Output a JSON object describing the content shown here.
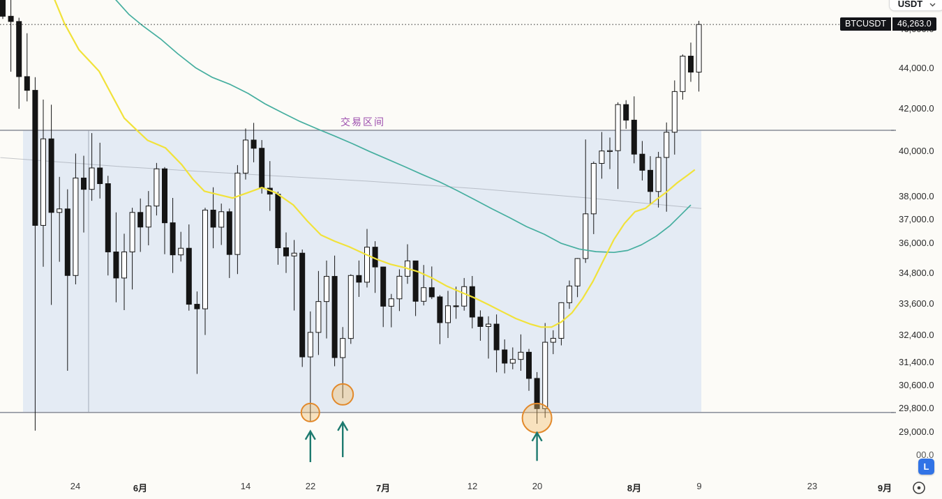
{
  "ui": {
    "currency_selector": {
      "label": "USDT"
    },
    "symbol_badge": {
      "symbol": "BTCUSDT",
      "price": "46,263.0"
    },
    "range_label": "交易区间",
    "log_scale_button": "L",
    "partial_axis_label": "00.0"
  },
  "colors": {
    "background": "#fcfbf7",
    "candle_down": "#151515",
    "candle_up_fill": "#ffffff",
    "range_box_fill": "rgba(196,212,240,0.42)",
    "range_line": "#90949e",
    "ma_yellow": "#f1e23a",
    "ma_teal": "#45ae9f",
    "ma_faint_gray": "rgba(140,145,155,0.5)",
    "highlight_circle_stroke": "#e2892b",
    "highlight_circle_fill": "rgba(243,186,98,0.38)",
    "arrow": "#1d7a6f",
    "range_label_color": "#9d4fae",
    "badge_bg": "#131418",
    "log_button_bg": "#3173e6",
    "current_price_line": "#2a2a2a"
  },
  "chart_data": {
    "type": "candlestick",
    "symbol": "BTCUSDT",
    "last_price": 46263.0,
    "scale": "log",
    "y_axis_ticks": [
      {
        "price": 46000,
        "label": "46,000.0"
      },
      {
        "price": 44000,
        "label": "44,000.0"
      },
      {
        "price": 42000,
        "label": "42,000.0"
      },
      {
        "price": 40000,
        "label": "40,000.0"
      },
      {
        "price": 38000,
        "label": "38,000.0"
      },
      {
        "price": 37000,
        "label": "37,000.0"
      },
      {
        "price": 36000,
        "label": "36,000.0"
      },
      {
        "price": 34800,
        "label": "34,800.0"
      },
      {
        "price": 33600,
        "label": "33,600.0"
      },
      {
        "price": 32400,
        "label": "32,400.0"
      },
      {
        "price": 31400,
        "label": "31,400.0"
      },
      {
        "price": 30600,
        "label": "30,600.0"
      },
      {
        "price": 29800,
        "label": "29,800.0"
      },
      {
        "price": 29000,
        "label": "29,000.0"
      }
    ],
    "x_axis_ticks": [
      {
        "label": "24",
        "day": 9,
        "month": false
      },
      {
        "label": "6月",
        "day": 17,
        "month": true
      },
      {
        "label": "14",
        "day": 30,
        "month": false
      },
      {
        "label": "22",
        "day": 38,
        "month": false
      },
      {
        "label": "7月",
        "day": 47,
        "month": true
      },
      {
        "label": "12",
        "day": 58,
        "month": false
      },
      {
        "label": "20",
        "day": 66,
        "month": false
      },
      {
        "label": "8月",
        "day": 78,
        "month": true
      },
      {
        "label": "9",
        "day": 86,
        "month": false
      },
      {
        "label": "23",
        "day": 100,
        "month": false
      },
      {
        "label": "9月",
        "day": 109,
        "month": true
      }
    ],
    "candles_ohlc": [
      [
        49850,
        50640,
        46555,
        46700
      ],
      [
        46700,
        49800,
        43825,
        46420
      ],
      [
        46420,
        46620,
        42000,
        43580
      ],
      [
        43580,
        45800,
        42360,
        42900
      ],
      [
        42900,
        43550,
        29050,
        36750
      ],
      [
        36750,
        42450,
        35050,
        40580
      ],
      [
        40580,
        42200,
        33550,
        37300
      ],
      [
        37300,
        38850,
        35250,
        37450
      ],
      [
        37450,
        38300,
        31111,
        34700
      ],
      [
        34700,
        39900,
        34350,
        38800
      ],
      [
        38800,
        39800,
        36450,
        38300
      ],
      [
        38300,
        40850,
        37800,
        39250
      ],
      [
        39250,
        40400,
        37900,
        38550
      ],
      [
        38550,
        38900,
        34700,
        35650
      ],
      [
        35650,
        37300,
        33650,
        34600
      ],
      [
        34600,
        36400,
        33350,
        35650
      ],
      [
        35650,
        37500,
        34150,
        37300
      ],
      [
        37300,
        37900,
        35650,
        36680
      ],
      [
        36680,
        38225,
        35920,
        37575
      ],
      [
        37575,
        39475,
        37170,
        39210
      ],
      [
        39210,
        39290,
        35555,
        36860
      ],
      [
        36860,
        37925,
        34800,
        35530
      ],
      [
        35530,
        36480,
        35260,
        35800
      ],
      [
        35800,
        36790,
        33330,
        33575
      ],
      [
        33575,
        34070,
        31000,
        33400
      ],
      [
        33400,
        37500,
        32415,
        37400
      ],
      [
        37400,
        38390,
        35800,
        36675
      ],
      [
        36675,
        37680,
        35935,
        37330
      ],
      [
        37330,
        37465,
        34600,
        35545
      ],
      [
        35545,
        39380,
        34755,
        39020
      ],
      [
        39020,
        41065,
        38730,
        40525
      ],
      [
        40525,
        41330,
        39505,
        40145
      ],
      [
        40145,
        40525,
        38115,
        38350
      ],
      [
        38350,
        39560,
        37365,
        38090
      ],
      [
        38090,
        38200,
        35130,
        35820
      ],
      [
        35820,
        36455,
        34800,
        35485
      ],
      [
        35485,
        36140,
        33335,
        35600
      ],
      [
        35600,
        35750,
        31250,
        31610
      ],
      [
        31610,
        33300,
        29350,
        32510
      ],
      [
        32510,
        34880,
        31680,
        33680
      ],
      [
        33680,
        35300,
        32285,
        34665
      ],
      [
        34665,
        35500,
        31275,
        31585
      ],
      [
        31585,
        32710,
        30150,
        32285
      ],
      [
        32285,
        34750,
        32085,
        34700
      ],
      [
        34700,
        35300,
        33860,
        34435
      ],
      [
        34435,
        36600,
        34225,
        35845
      ],
      [
        35845,
        36090,
        34015,
        35040
      ],
      [
        35040,
        35055,
        32710,
        33500
      ],
      [
        33500,
        33975,
        32700,
        33785
      ],
      [
        33785,
        34945,
        33315,
        34670
      ],
      [
        34670,
        35965,
        34370,
        35285
      ],
      [
        35285,
        35290,
        33125,
        33690
      ],
      [
        33690,
        35120,
        33530,
        34220
      ],
      [
        34220,
        35060,
        33775,
        33860
      ],
      [
        33860,
        33930,
        32075,
        32875
      ],
      [
        32875,
        34095,
        32300,
        33515
      ],
      [
        33515,
        34260,
        33020,
        33505
      ],
      [
        33505,
        34600,
        33330,
        34260
      ],
      [
        34260,
        34680,
        32660,
        33085
      ],
      [
        33085,
        33340,
        32200,
        32730
      ],
      [
        32730,
        33115,
        31550,
        32820
      ],
      [
        32820,
        33185,
        31055,
        31865
      ],
      [
        31865,
        32250,
        31020,
        31385
      ],
      [
        31385,
        31955,
        31165,
        31520
      ],
      [
        31520,
        32435,
        31110,
        31780
      ],
      [
        31780,
        31900,
        30405,
        30840
      ],
      [
        30840,
        31065,
        29280,
        29790
      ],
      [
        29790,
        32860,
        29480,
        32145
      ],
      [
        32145,
        32590,
        31710,
        32290
      ],
      [
        32290,
        33650,
        32030,
        33635
      ],
      [
        33635,
        34500,
        33400,
        34285
      ],
      [
        34285,
        35400,
        33850,
        35380
      ],
      [
        35380,
        40550,
        35205,
        37240
      ],
      [
        37240,
        39540,
        36385,
        39455
      ],
      [
        39455,
        40900,
        38770,
        40020
      ],
      [
        40020,
        40640,
        39200,
        40035
      ],
      [
        40035,
        42315,
        38315,
        42205
      ],
      [
        42205,
        42420,
        41050,
        41460
      ],
      [
        41460,
        42605,
        39460,
        39875
      ],
      [
        39875,
        40480,
        38690,
        39145
      ],
      [
        39145,
        39780,
        37640,
        38205
      ],
      [
        38205,
        39980,
        37510,
        39725
      ],
      [
        39725,
        41350,
        37330,
        40890
      ],
      [
        40890,
        43390,
        39855,
        42840
      ],
      [
        42840,
        44700,
        42445,
        44615
      ],
      [
        44615,
        45310,
        43320,
        43805
      ],
      [
        43805,
        46455,
        42840,
        46263
      ]
    ],
    "ma_yellow_points": [
      [
        6.4,
        47600
      ],
      [
        7.6,
        46330
      ],
      [
        9.4,
        44950
      ],
      [
        11.9,
        43850
      ],
      [
        13.7,
        42500
      ],
      [
        15,
        41560
      ],
      [
        16.6,
        40970
      ],
      [
        17.9,
        40510
      ],
      [
        20.1,
        40160
      ],
      [
        22.1,
        39400
      ],
      [
        23.5,
        38740
      ],
      [
        24.9,
        38220
      ],
      [
        26.6,
        38070
      ],
      [
        28.4,
        37920
      ],
      [
        30.3,
        38160
      ],
      [
        32,
        38380
      ],
      [
        33.7,
        38160
      ],
      [
        35.9,
        37620
      ],
      [
        37.6,
        36940
      ],
      [
        39.3,
        36350
      ],
      [
        41,
        36090
      ],
      [
        42.8,
        35860
      ],
      [
        44.5,
        35600
      ],
      [
        46.2,
        35350
      ],
      [
        47.9,
        35150
      ],
      [
        49.7,
        35010
      ],
      [
        51.4,
        34840
      ],
      [
        53.1,
        34590
      ],
      [
        54.8,
        34290
      ],
      [
        56.6,
        34040
      ],
      [
        58.3,
        33820
      ],
      [
        60,
        33560
      ],
      [
        61.7,
        33290
      ],
      [
        63.4,
        33030
      ],
      [
        65.2,
        32820
      ],
      [
        66.5,
        32710
      ],
      [
        67.8,
        32710
      ],
      [
        69,
        32900
      ],
      [
        70.3,
        33240
      ],
      [
        71.6,
        33780
      ],
      [
        72.9,
        34460
      ],
      [
        74.2,
        35300
      ],
      [
        75.5,
        36160
      ],
      [
        76.8,
        36830
      ],
      [
        78.1,
        37330
      ],
      [
        79.4,
        37480
      ],
      [
        80.7,
        37840
      ],
      [
        82,
        38180
      ],
      [
        83.3,
        38580
      ],
      [
        84.7,
        38950
      ],
      [
        85.5,
        39170
      ]
    ],
    "ma_teal_points": [
      [
        13.9,
        47620
      ],
      [
        15.6,
        46790
      ],
      [
        17.3,
        46190
      ],
      [
        19.5,
        45500
      ],
      [
        21.6,
        44740
      ],
      [
        23.8,
        44030
      ],
      [
        25.9,
        43540
      ],
      [
        28.1,
        43190
      ],
      [
        30.3,
        42750
      ],
      [
        32.4,
        42240
      ],
      [
        34.6,
        41800
      ],
      [
        36.7,
        41400
      ],
      [
        38.9,
        41040
      ],
      [
        41,
        40710
      ],
      [
        43.2,
        40360
      ],
      [
        45.3,
        40000
      ],
      [
        47.5,
        39650
      ],
      [
        49.7,
        39300
      ],
      [
        51.8,
        38960
      ],
      [
        54,
        38620
      ],
      [
        56.1,
        38250
      ],
      [
        58.3,
        37850
      ],
      [
        60.4,
        37460
      ],
      [
        62.6,
        37080
      ],
      [
        64.7,
        36700
      ],
      [
        66.9,
        36380
      ],
      [
        69,
        36000
      ],
      [
        71.2,
        35770
      ],
      [
        73.3,
        35660
      ],
      [
        75.5,
        35630
      ],
      [
        77.2,
        35710
      ],
      [
        78.9,
        35940
      ],
      [
        80.7,
        36290
      ],
      [
        82.4,
        36730
      ],
      [
        83.7,
        37170
      ],
      [
        85,
        37620
      ]
    ],
    "ma_gray_points": [
      [
        -0.3,
        39720
      ],
      [
        15,
        39300
      ],
      [
        30,
        38970
      ],
      [
        45,
        38660
      ],
      [
        59,
        38320
      ],
      [
        73,
        37900
      ],
      [
        86.3,
        37470
      ]
    ],
    "annotations": {
      "trading_range_box": {
        "day_start": 2.5,
        "day_end": 86.3,
        "price_top": 40980,
        "price_bottom": 29660
      },
      "range_inner_vline_day": 10.6,
      "highlight_circles": [
        {
          "day": 38,
          "price": 29660,
          "r": 13
        },
        {
          "day": 42,
          "price": 30280,
          "r": 15
        },
        {
          "day": 66,
          "price": 29470,
          "r": 21
        }
      ],
      "up_arrows": [
        {
          "day": 38,
          "tip_price": 29030,
          "tail_price": 28020
        },
        {
          "day": 42,
          "tip_price": 29330,
          "tail_price": 28180
        },
        {
          "day": 66,
          "tip_price": 28980,
          "tail_price": 28060
        }
      ],
      "current_price_line": 46263
    }
  }
}
